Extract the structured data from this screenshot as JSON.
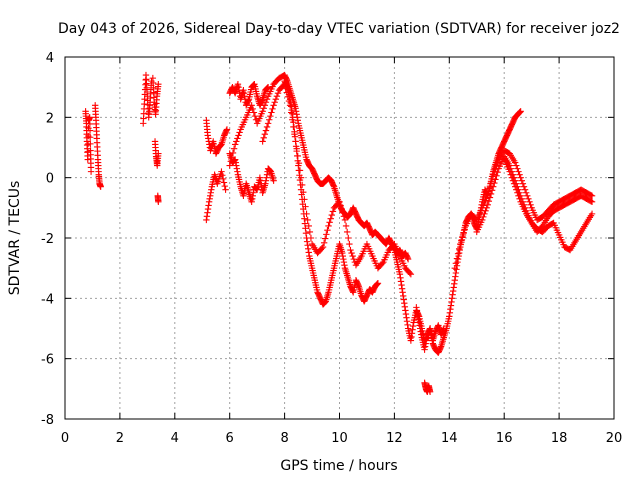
{
  "chart_data": {
    "type": "scatter",
    "title": "Day 043 of 2026, Sidereal Day-to-day VTEC variation (SDTVAR) for receiver joz2",
    "xlabel": "GPS time / hours",
    "ylabel": "SDTVAR / TECUs",
    "xlim": [
      0,
      20
    ],
    "ylim": [
      -8,
      4
    ],
    "xticks": [
      "0",
      "2",
      "4",
      "6",
      "8",
      "10",
      "12",
      "14",
      "16",
      "18",
      "20"
    ],
    "yticks": [
      "-8",
      "-6",
      "-4",
      "-2",
      "0",
      "2",
      "4"
    ],
    "grid": true,
    "marker": "+",
    "series": [
      {
        "name": "SDTVAR",
        "color": "#ff0000",
        "segments": [
          {
            "x": [
              0.75,
              0.78,
              0.8,
              0.83,
              0.86,
              0.9,
              0.93,
              0.95
            ],
            "y": [
              2.2,
              1.8,
              1.2,
              0.6,
              1.9,
              2.0,
              0.9,
              0.2
            ]
          },
          {
            "x": [
              1.1,
              1.13,
              1.16,
              1.2,
              1.23,
              1.26,
              1.3
            ],
            "y": [
              2.4,
              1.9,
              1.3,
              0.6,
              0.1,
              -0.2,
              -0.3
            ]
          },
          {
            "x": [
              2.85,
              2.9,
              2.95,
              3.0,
              3.05,
              3.1,
              3.15
            ],
            "y": [
              1.8,
              2.6,
              3.4,
              2.7,
              2.0,
              2.5,
              3.2
            ]
          },
          {
            "x": [
              3.2,
              3.25,
              3.3,
              3.35,
              3.4
            ],
            "y": [
              3.3,
              2.5,
              2.1,
              2.7,
              3.1
            ]
          },
          {
            "x": [
              3.28,
              3.32,
              3.36,
              3.4
            ],
            "y": [
              1.2,
              0.7,
              0.4,
              0.8
            ]
          },
          {
            "x": [
              3.38,
              3.4
            ],
            "y": [
              -0.6,
              -0.8
            ]
          },
          {
            "x": [
              5.15,
              5.2,
              5.3,
              5.4,
              5.5,
              5.6,
              5.7,
              5.8,
              5.9
            ],
            "y": [
              1.9,
              1.4,
              0.9,
              1.2,
              0.8,
              1.0,
              1.1,
              1.4,
              1.6
            ]
          },
          {
            "x": [
              5.15,
              5.25,
              5.35,
              5.45,
              5.55,
              5.7,
              5.85
            ],
            "y": [
              -1.4,
              -0.8,
              -0.3,
              0.1,
              -0.2,
              0.2,
              -0.4
            ]
          },
          {
            "x": [
              6.0,
              6.1,
              6.2,
              6.3,
              6.4,
              6.5,
              6.6,
              6.7,
              6.8,
              6.9,
              7.0,
              7.1,
              7.2,
              7.3,
              7.4
            ],
            "y": [
              2.8,
              3.0,
              2.8,
              3.1,
              2.6,
              2.9,
              2.4,
              2.6,
              3.0,
              3.1,
              2.7,
              2.4,
              2.6,
              2.9,
              3.0
            ]
          },
          {
            "x": [
              6.0,
              6.1,
              6.2,
              6.3,
              6.4,
              6.5,
              6.6,
              6.7,
              6.8,
              6.9,
              7.0,
              7.1,
              7.2,
              7.3,
              7.4,
              7.5,
              7.6
            ],
            "y": [
              0.8,
              0.5,
              0.6,
              0.1,
              -0.3,
              -0.6,
              -0.2,
              -0.5,
              -0.8,
              -0.3,
              -0.4,
              0.0,
              -0.5,
              -0.2,
              0.3,
              0.2,
              -0.1
            ]
          },
          {
            "x": [
              6.0,
              6.2,
              6.4,
              6.6,
              6.8,
              7.0,
              7.2,
              7.4,
              7.6,
              7.8,
              8.0,
              8.1,
              8.2,
              8.3,
              8.4,
              8.5,
              8.6,
              8.7,
              8.8,
              8.9,
              9.0,
              9.1,
              9.2,
              9.3,
              9.4,
              9.5,
              9.6,
              9.7,
              9.8,
              9.9,
              10.0,
              10.1,
              10.2,
              10.3,
              10.4,
              10.5,
              10.6,
              10.7,
              10.8,
              10.9,
              11.0,
              11.1,
              11.2,
              11.3,
              11.4,
              11.5,
              11.6,
              11.7,
              11.8,
              11.9,
              12.0,
              12.1,
              12.2,
              12.3,
              12.4,
              12.5
            ],
            "y": [
              0.4,
              1.1,
              1.6,
              2.0,
              2.4,
              1.8,
              2.2,
              2.7,
              3.1,
              3.3,
              3.4,
              3.2,
              2.9,
              2.6,
              2.3,
              1.8,
              1.4,
              1.0,
              0.6,
              0.4,
              0.3,
              0.1,
              -0.1,
              -0.2,
              -0.2,
              -0.1,
              0.0,
              -0.1,
              -0.3,
              -0.6,
              -0.9,
              -1.1,
              -1.2,
              -1.3,
              -1.2,
              -1.0,
              -1.2,
              -1.4,
              -1.5,
              -1.6,
              -1.5,
              -1.7,
              -1.9,
              -1.8,
              -1.9,
              -2.0,
              -2.1,
              -2.2,
              -2.0,
              -2.2,
              -2.3,
              -2.5,
              -2.4,
              -2.6,
              -2.5,
              -2.7
            ]
          },
          {
            "x": [
              8.0,
              8.1,
              8.2,
              8.3,
              8.4,
              8.5,
              8.6,
              8.7,
              8.8,
              8.9,
              9.0,
              9.1,
              9.2,
              9.3,
              9.4,
              9.5,
              9.6,
              9.7,
              9.8,
              9.9,
              10.0,
              10.1,
              10.2,
              10.3,
              10.4,
              10.5,
              10.6,
              10.7,
              10.8,
              10.9,
              11.0,
              11.1,
              11.2,
              11.3,
              11.4
            ],
            "y": [
              3.2,
              3.0,
              2.6,
              2.0,
              1.2,
              0.4,
              -0.4,
              -1.2,
              -2.0,
              -2.6,
              -3.0,
              -3.4,
              -3.8,
              -4.0,
              -4.2,
              -4.1,
              -3.8,
              -3.4,
              -3.0,
              -2.6,
              -2.2,
              -2.5,
              -3.0,
              -3.3,
              -3.6,
              -3.8,
              -3.4,
              -3.6,
              -3.9,
              -4.1,
              -3.9,
              -3.7,
              -3.8,
              -3.6,
              -3.5
            ]
          },
          {
            "x": [
              7.2,
              7.4,
              7.6,
              7.8,
              8.0,
              8.2,
              8.4,
              8.6,
              8.8,
              9.0,
              9.2,
              9.4,
              9.6,
              9.8,
              10.0,
              10.2,
              10.4,
              10.6,
              10.8,
              11.0,
              11.2,
              11.4,
              11.6,
              11.8,
              12.0,
              12.2,
              12.4,
              12.6
            ],
            "y": [
              1.2,
              1.8,
              2.4,
              2.9,
              3.1,
              2.4,
              1.2,
              0.0,
              -1.2,
              -2.2,
              -2.5,
              -2.3,
              -1.6,
              -1.0,
              -0.8,
              -1.4,
              -2.4,
              -2.9,
              -2.6,
              -2.2,
              -2.6,
              -3.0,
              -2.8,
              -2.4,
              -2.2,
              -2.6,
              -3.0,
              -3.2
            ]
          },
          {
            "x": [
              12.0,
              12.1,
              12.2,
              12.3,
              12.4,
              12.5,
              12.6,
              12.7,
              12.8,
              12.9,
              13.0,
              13.1,
              13.2,
              13.3,
              13.4,
              13.5,
              13.6,
              13.7,
              13.8,
              13.9,
              14.0
            ],
            "y": [
              -2.4,
              -2.8,
              -3.2,
              -3.8,
              -4.4,
              -5.0,
              -5.4,
              -4.8,
              -4.4,
              -4.6,
              -5.0,
              -5.4,
              -5.3,
              -5.0,
              -5.5,
              -5.7,
              -5.8,
              -5.6,
              -5.3,
              -5.0,
              -4.6
            ]
          },
          {
            "x": [
              12.8,
              12.9,
              13.0,
              13.1,
              13.2,
              13.3,
              13.4,
              13.5,
              13.6,
              13.7,
              13.8
            ],
            "y": [
              -4.3,
              -4.8,
              -5.3,
              -5.7,
              -5.2,
              -5.0,
              -5.4,
              -5.1,
              -4.9,
              -5.2,
              -5.0
            ]
          },
          {
            "x": [
              13.1,
              13.15,
              13.2,
              13.25,
              13.3
            ],
            "y": [
              -6.8,
              -7.0,
              -7.1,
              -6.9,
              -7.1
            ]
          },
          {
            "x": [
              14.0,
              14.1,
              14.2,
              14.3,
              14.4,
              14.5,
              14.6,
              14.7,
              14.8,
              14.9,
              15.0,
              15.1,
              15.2,
              15.3,
              15.4,
              15.5,
              15.6,
              15.7,
              15.8,
              15.9,
              16.0,
              16.1,
              16.2,
              16.3,
              16.4,
              16.5,
              16.6
            ],
            "y": [
              -4.6,
              -4.0,
              -3.4,
              -2.8,
              -2.3,
              -1.9,
              -1.5,
              -1.3,
              -1.2,
              -1.5,
              -1.7,
              -1.3,
              -0.8,
              -0.4,
              -0.6,
              -0.2,
              0.2,
              0.5,
              0.8,
              1.0,
              1.2,
              1.4,
              1.6,
              1.8,
              2.0,
              2.1,
              2.2
            ]
          },
          {
            "x": [
              14.2,
              14.4,
              14.6,
              14.8,
              15.0,
              15.2,
              15.4,
              15.6,
              15.8,
              16.0,
              16.2,
              16.4,
              16.6,
              16.8,
              17.0,
              17.2,
              17.4,
              17.6,
              17.8,
              18.0,
              18.2,
              18.4,
              18.6,
              18.8,
              19.0,
              19.2
            ],
            "y": [
              -3.0,
              -2.2,
              -1.6,
              -1.2,
              -1.4,
              -1.0,
              -0.6,
              0.1,
              0.6,
              0.9,
              0.8,
              0.5,
              0.0,
              -0.5,
              -1.0,
              -1.4,
              -1.3,
              -1.1,
              -0.9,
              -0.8,
              -0.7,
              -0.6,
              -0.5,
              -0.4,
              -0.5,
              -0.6
            ]
          },
          {
            "x": [
              15.0,
              15.2,
              15.4,
              15.6,
              15.8,
              16.0,
              16.2,
              16.4,
              16.6,
              16.8,
              17.0,
              17.2,
              17.4,
              17.6,
              17.8,
              18.0,
              18.2,
              18.4,
              18.6,
              18.8,
              19.0,
              19.2
            ],
            "y": [
              -1.8,
              -1.4,
              -0.9,
              -0.3,
              0.3,
              0.7,
              0.4,
              -0.1,
              -0.6,
              -1.1,
              -1.5,
              -1.8,
              -1.6,
              -1.3,
              -1.1,
              -1.0,
              -0.9,
              -0.8,
              -0.7,
              -0.6,
              -0.7,
              -0.8
            ]
          },
          {
            "x": [
              16.0,
              16.2,
              16.4,
              16.6,
              16.8,
              17.0,
              17.2,
              17.4,
              17.6,
              17.8,
              18.0,
              18.2,
              18.4,
              18.6,
              18.8,
              19.0,
              19.2
            ],
            "y": [
              0.6,
              0.2,
              -0.3,
              -0.8,
              -1.2,
              -1.5,
              -1.7,
              -1.8,
              -1.6,
              -1.5,
              -1.9,
              -2.3,
              -2.4,
              -2.1,
              -1.8,
              -1.5,
              -1.2
            ]
          }
        ]
      }
    ]
  }
}
